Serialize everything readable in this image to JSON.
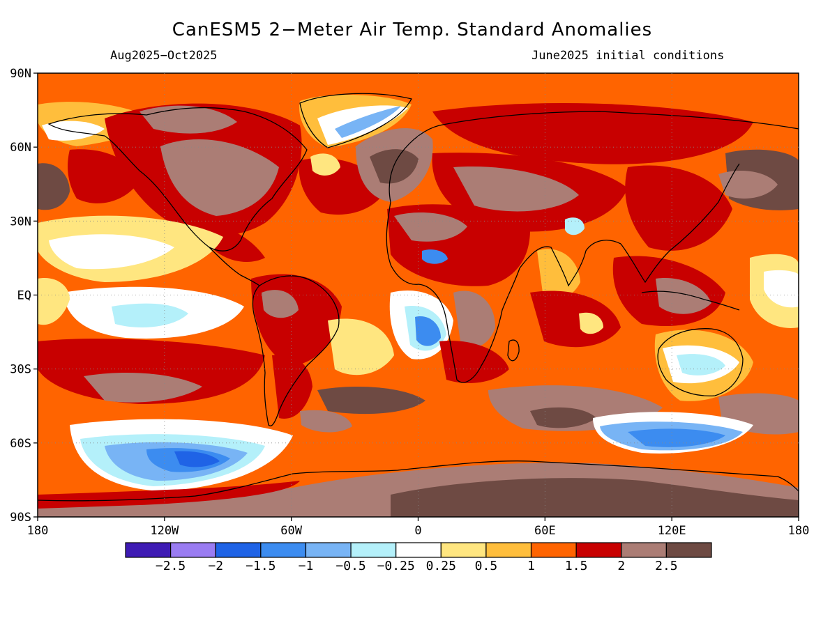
{
  "header": {
    "title": "CanESM5 2−Meter Air Temp. Standard Anomalies",
    "period": "Aug2025−Oct2025",
    "init": "June2025 initial conditions"
  },
  "map": {
    "lat_labels": [
      "90N",
      "60N",
      "30N",
      "EQ",
      "30S",
      "60S",
      "90S"
    ],
    "lon_labels": [
      "180",
      "120W",
      "60W",
      "0",
      "60E",
      "120E",
      "180"
    ],
    "background_color": "#ff6400",
    "coastline_color": "#000000"
  },
  "colorbar": {
    "colors": [
      "#3e1bb4",
      "#9a7cf2",
      "#1f63e6",
      "#3c8cf0",
      "#78b4f5",
      "#b4f0fa",
      "#ffffff",
      "#ffe680",
      "#ffbe3c",
      "#ff6400",
      "#c80000",
      "#ab7d75",
      "#6e4a43"
    ],
    "labels": [
      "−2.5",
      "−2",
      "−1.5",
      "−1",
      "−0.5",
      "−0.25",
      "0.25",
      "0.5",
      "1",
      "1.5",
      "2",
      "2.5"
    ]
  }
}
